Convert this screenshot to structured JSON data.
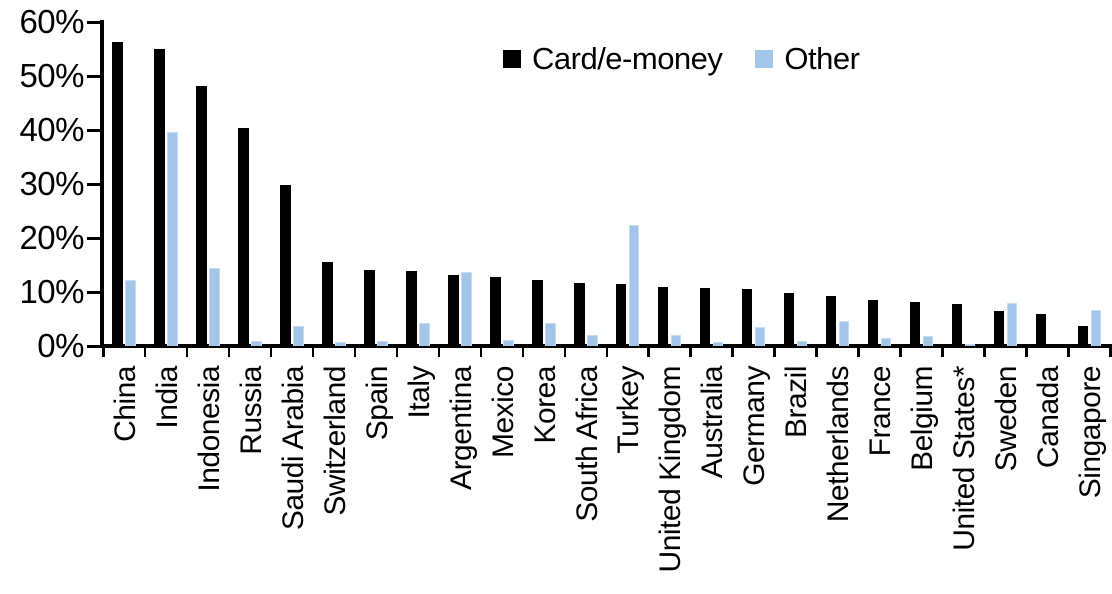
{
  "chart_data": {
    "type": "bar",
    "title": "",
    "xlabel": "",
    "ylabel": "",
    "ylim": [
      0,
      60
    ],
    "grid": false,
    "legend_position": "top-center",
    "yticks": [
      "0%",
      "10%",
      "20%",
      "30%",
      "40%",
      "50%",
      "60%"
    ],
    "categories": [
      "China",
      "India",
      "Indonesia",
      "Russia",
      "Saudi Arabia",
      "Switzerland",
      "Spain",
      "Italy",
      "Argentina",
      "Mexico",
      "Korea",
      "South Africa",
      "Turkey",
      "United Kingdom",
      "Australia",
      "Germany",
      "Brazil",
      "Netherlands",
      "France",
      "Belgium",
      "United States*",
      "Sweden",
      "Canada",
      "Singapore"
    ],
    "series": [
      {
        "name": "Card/e-money",
        "color": "#000000",
        "values": [
          56.3,
          55.0,
          48.2,
          40.3,
          29.8,
          15.5,
          14.0,
          13.9,
          13.2,
          12.8,
          12.2,
          11.7,
          11.5,
          11.0,
          10.7,
          10.5,
          9.9,
          9.2,
          8.6,
          8.1,
          7.8,
          6.4,
          5.9,
          3.7
        ]
      },
      {
        "name": "Other",
        "color": "#A3C6E8",
        "values": [
          12.3,
          39.6,
          14.4,
          0.9,
          3.7,
          0.7,
          0.9,
          4.2,
          13.7,
          1.1,
          4.2,
          2.1,
          22.5,
          2.1,
          0.8,
          3.6,
          0.9,
          4.6,
          1.4,
          1.9,
          0.3,
          7.9,
          0.0,
          6.6
        ]
      }
    ]
  }
}
